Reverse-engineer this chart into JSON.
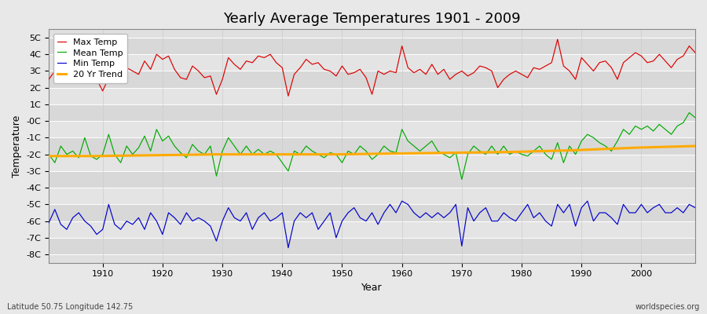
{
  "title": "Yearly Average Temperatures 1901 - 2009",
  "xlabel": "Year",
  "ylabel": "Temperature",
  "years": [
    1901,
    1902,
    1903,
    1904,
    1905,
    1906,
    1907,
    1908,
    1909,
    1910,
    1911,
    1912,
    1913,
    1914,
    1915,
    1916,
    1917,
    1918,
    1919,
    1920,
    1921,
    1922,
    1923,
    1924,
    1925,
    1926,
    1927,
    1928,
    1929,
    1930,
    1931,
    1932,
    1933,
    1934,
    1935,
    1936,
    1937,
    1938,
    1939,
    1940,
    1941,
    1942,
    1943,
    1944,
    1945,
    1946,
    1947,
    1948,
    1949,
    1950,
    1951,
    1952,
    1953,
    1954,
    1955,
    1956,
    1957,
    1958,
    1959,
    1960,
    1961,
    1962,
    1963,
    1964,
    1965,
    1966,
    1967,
    1968,
    1969,
    1970,
    1971,
    1972,
    1973,
    1974,
    1975,
    1976,
    1977,
    1978,
    1979,
    1980,
    1981,
    1982,
    1983,
    1984,
    1985,
    1986,
    1987,
    1988,
    1989,
    1990,
    1991,
    1992,
    1993,
    1994,
    1995,
    1996,
    1997,
    1998,
    1999,
    2000,
    2001,
    2002,
    2003,
    2004,
    2005,
    2006,
    2007,
    2008,
    2009
  ],
  "max_temp": [
    2.5,
    3.0,
    3.3,
    2.8,
    2.6,
    3.1,
    3.4,
    2.9,
    2.5,
    1.8,
    2.6,
    4.2,
    3.5,
    3.2,
    3.0,
    2.8,
    3.6,
    3.1,
    4.0,
    3.7,
    3.9,
    3.1,
    2.6,
    2.5,
    3.3,
    3.0,
    2.6,
    2.7,
    1.6,
    2.5,
    3.8,
    3.4,
    3.1,
    3.6,
    3.5,
    3.9,
    3.8,
    4.0,
    3.5,
    3.2,
    1.5,
    2.8,
    3.2,
    3.7,
    3.4,
    3.5,
    3.1,
    3.0,
    2.7,
    3.3,
    2.8,
    2.9,
    3.1,
    2.6,
    1.6,
    3.0,
    2.8,
    3.0,
    2.9,
    4.5,
    3.2,
    2.9,
    3.1,
    2.8,
    3.4,
    2.8,
    3.1,
    2.5,
    2.8,
    3.0,
    2.7,
    2.9,
    3.3,
    3.2,
    3.0,
    2.0,
    2.5,
    2.8,
    3.0,
    2.8,
    2.6,
    3.2,
    3.1,
    3.3,
    3.5,
    4.9,
    3.3,
    3.0,
    2.5,
    3.8,
    3.4,
    3.0,
    3.5,
    3.6,
    3.2,
    2.5,
    3.5,
    3.8,
    4.1,
    3.9,
    3.5,
    3.6,
    4.0,
    3.6,
    3.2,
    3.7,
    3.9,
    4.5,
    4.1
  ],
  "mean_temp": [
    -2.0,
    -2.5,
    -1.5,
    -2.0,
    -1.8,
    -2.2,
    -1.0,
    -2.1,
    -2.3,
    -2.0,
    -0.8,
    -2.0,
    -2.5,
    -1.5,
    -2.0,
    -1.6,
    -0.9,
    -1.8,
    -0.5,
    -1.2,
    -0.9,
    -1.5,
    -1.9,
    -2.2,
    -1.4,
    -1.8,
    -2.0,
    -1.5,
    -3.3,
    -1.8,
    -1.0,
    -1.5,
    -2.0,
    -1.5,
    -2.0,
    -1.7,
    -2.0,
    -1.8,
    -2.0,
    -2.5,
    -3.0,
    -1.8,
    -2.0,
    -1.5,
    -1.8,
    -2.0,
    -2.2,
    -1.9,
    -2.0,
    -2.5,
    -1.8,
    -2.0,
    -1.5,
    -1.8,
    -2.3,
    -2.0,
    -1.5,
    -1.8,
    -1.9,
    -0.5,
    -1.2,
    -1.5,
    -1.8,
    -1.5,
    -1.2,
    -1.8,
    -2.0,
    -2.2,
    -1.9,
    -3.5,
    -2.0,
    -1.5,
    -1.8,
    -2.0,
    -1.5,
    -2.0,
    -1.5,
    -2.0,
    -1.8,
    -2.0,
    -2.1,
    -1.8,
    -1.5,
    -2.0,
    -2.3,
    -1.3,
    -2.5,
    -1.5,
    -2.0,
    -1.2,
    -0.8,
    -1.0,
    -1.3,
    -1.5,
    -1.8,
    -1.2,
    -0.5,
    -0.8,
    -0.3,
    -0.5,
    -0.3,
    -0.6,
    -0.2,
    -0.5,
    -0.8,
    -0.3,
    -0.1,
    0.5,
    0.2
  ],
  "min_temp": [
    -6.1,
    -5.3,
    -6.2,
    -6.5,
    -5.8,
    -5.5,
    -6.0,
    -6.3,
    -6.8,
    -6.5,
    -5.0,
    -6.2,
    -6.5,
    -6.0,
    -6.2,
    -5.8,
    -6.5,
    -5.5,
    -6.0,
    -6.8,
    -5.5,
    -5.8,
    -6.2,
    -5.5,
    -6.0,
    -5.8,
    -6.0,
    -6.3,
    -7.2,
    -6.0,
    -5.2,
    -5.8,
    -6.0,
    -5.5,
    -6.5,
    -5.8,
    -5.5,
    -6.0,
    -5.8,
    -5.5,
    -7.6,
    -6.0,
    -5.5,
    -5.8,
    -5.5,
    -6.5,
    -6.0,
    -5.5,
    -7.0,
    -6.0,
    -5.5,
    -5.2,
    -5.8,
    -6.0,
    -5.5,
    -6.2,
    -5.5,
    -5.0,
    -5.5,
    -4.8,
    -5.0,
    -5.5,
    -5.8,
    -5.5,
    -5.8,
    -5.5,
    -5.8,
    -5.5,
    -5.0,
    -7.5,
    -5.2,
    -6.0,
    -5.5,
    -5.2,
    -6.0,
    -6.0,
    -5.5,
    -5.8,
    -6.0,
    -5.5,
    -5.0,
    -5.8,
    -5.5,
    -6.0,
    -6.3,
    -5.0,
    -5.5,
    -5.0,
    -6.3,
    -5.2,
    -4.8,
    -6.0,
    -5.5,
    -5.5,
    -5.8,
    -6.2,
    -5.0,
    -5.5,
    -5.5,
    -5.0,
    -5.5,
    -5.2,
    -5.0,
    -5.5,
    -5.5,
    -5.2,
    -5.5,
    -5.0,
    -5.2
  ],
  "trend_x": [
    1901,
    1909,
    1919,
    1929,
    1939,
    1949,
    1959,
    1969,
    1979,
    1989,
    1999,
    2009
  ],
  "trend_y": [
    -2.1,
    -2.1,
    -2.05,
    -2.0,
    -2.0,
    -2.0,
    -1.95,
    -1.9,
    -1.85,
    -1.75,
    -1.6,
    -1.5
  ],
  "max_color": "#dd0000",
  "mean_color": "#00aa00",
  "min_color": "#0000cc",
  "trend_color": "#ffaa00",
  "bg_color": "#e8e8e8",
  "plot_bg_color": "#e0e0e0",
  "grid_color_h": "#ffffff",
  "grid_color_v": "#cccccc",
  "ylim": [
    -8.5,
    5.5
  ],
  "yticks": [
    -8,
    -7,
    -6,
    -5,
    -4,
    -3,
    -2,
    -1,
    0,
    1,
    2,
    3,
    4,
    5
  ],
  "xlim_left": 1901,
  "xlim_right": 2009,
  "xticks": [
    1910,
    1920,
    1930,
    1940,
    1950,
    1960,
    1970,
    1980,
    1990,
    2000
  ],
  "footnote_left": "Latitude 50.75 Longitude 142.75",
  "footnote_right": "worldspecies.org",
  "title_fontsize": 13,
  "axis_label_fontsize": 9,
  "tick_fontsize": 8,
  "legend_fontsize": 8
}
